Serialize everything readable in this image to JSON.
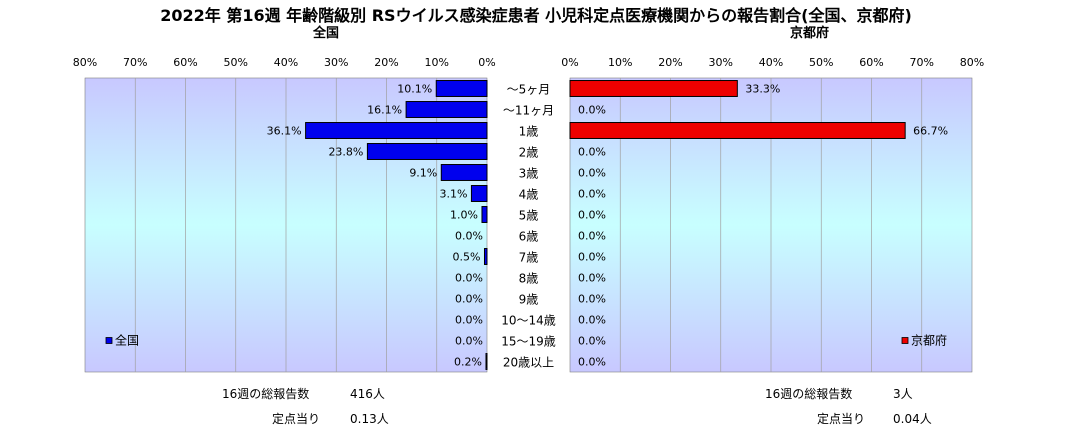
{
  "title": "2022年 第16週 年齢階級別 RSウイルス感染症患者 小児科定点医療機関からの報告割合(全国、京都府)",
  "colors": {
    "national_bar": "#0000ee",
    "kyoto_bar": "#ee0000",
    "plot_bg_top": "#c8c8ff",
    "plot_bg_mid": "#c8ffff",
    "plot_bg_bottom": "#c8c8ff",
    "grid": "#a0a0a0"
  },
  "chart_data": [
    {
      "type": "bar",
      "orientation": "horizontal",
      "direction": "right-to-left",
      "subtitle": "全国",
      "legend": "全国",
      "legend_position": "bottom-left",
      "xlim": [
        0,
        80
      ],
      "ticks": [
        "0%",
        "10%",
        "20%",
        "30%",
        "40%",
        "50%",
        "60%",
        "70%",
        "80%"
      ],
      "categories": [
        "～5ヶ月",
        "～11ヶ月",
        "1歳",
        "2歳",
        "3歳",
        "4歳",
        "5歳",
        "6歳",
        "7歳",
        "8歳",
        "9歳",
        "10～14歳",
        "15～19歳",
        "20歳以上"
      ],
      "values": [
        10.1,
        16.1,
        36.1,
        23.8,
        9.1,
        3.1,
        1.0,
        0.0,
        0.5,
        0.0,
        0.0,
        0.0,
        0.0,
        0.2
      ],
      "labels": [
        "10.1%",
        "16.1%",
        "36.1%",
        "23.8%",
        "9.1%",
        "3.1%",
        "1.0%",
        "0.0%",
        "0.5%",
        "0.0%",
        "0.0%",
        "0.0%",
        "0.0%",
        "0.2%"
      ],
      "grid": true
    },
    {
      "type": "bar",
      "orientation": "horizontal",
      "direction": "left-to-right",
      "subtitle": "京都府",
      "legend": "京都府",
      "legend_position": "bottom-right",
      "xlim": [
        0,
        80
      ],
      "ticks": [
        "0%",
        "10%",
        "20%",
        "30%",
        "40%",
        "50%",
        "60%",
        "70%",
        "80%"
      ],
      "categories": [
        "～5ヶ月",
        "～11ヶ月",
        "1歳",
        "2歳",
        "3歳",
        "4歳",
        "5歳",
        "6歳",
        "7歳",
        "8歳",
        "9歳",
        "10～14歳",
        "15～19歳",
        "20歳以上"
      ],
      "values": [
        33.3,
        0.0,
        66.7,
        0.0,
        0.0,
        0.0,
        0.0,
        0.0,
        0.0,
        0.0,
        0.0,
        0.0,
        0.0,
        0.0
      ],
      "labels": [
        "33.3%",
        "0.0%",
        "66.7%",
        "0.0%",
        "0.0%",
        "0.0%",
        "0.0%",
        "0.0%",
        "0.0%",
        "0.0%",
        "0.0%",
        "0.0%",
        "0.0%",
        "0.0%"
      ],
      "grid": true
    }
  ],
  "notes": {
    "national": {
      "total_label": "16週の総報告数",
      "total_value": "416人",
      "per_site_label": "定点当り",
      "per_site_value": "0.13人"
    },
    "kyoto": {
      "total_label": "16週の総報告数",
      "total_value": "3人",
      "per_site_label": "定点当り",
      "per_site_value": "0.04人"
    }
  }
}
